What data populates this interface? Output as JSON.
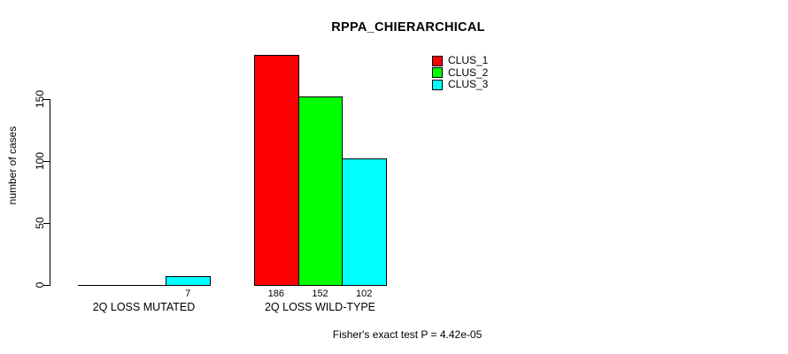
{
  "chart_data": {
    "type": "bar",
    "title": "RPPA_CHIERARCHICAL",
    "xlabel": "",
    "ylabel": "number of cases",
    "categories": [
      "2Q LOSS MUTATED",
      "2Q LOSS WILD-TYPE"
    ],
    "series": [
      {
        "name": "CLUS_1",
        "color": "#ff0000",
        "values": [
          0,
          186
        ]
      },
      {
        "name": "CLUS_2",
        "color": "#00ff00",
        "values": [
          0,
          152
        ]
      },
      {
        "name": "CLUS_3",
        "color": "#00ffff",
        "values": [
          7,
          102
        ]
      }
    ],
    "yticks": [
      0,
      50,
      100,
      150
    ],
    "ylim": [
      0,
      195
    ],
    "grid": false,
    "legend_position": "top-right",
    "bar_value_labels": [
      7,
      186,
      152,
      102
    ],
    "annotation": "Fisher's exact test P = 4.42e-05",
    "axis_color": "#000000",
    "background": "#ffffff"
  }
}
